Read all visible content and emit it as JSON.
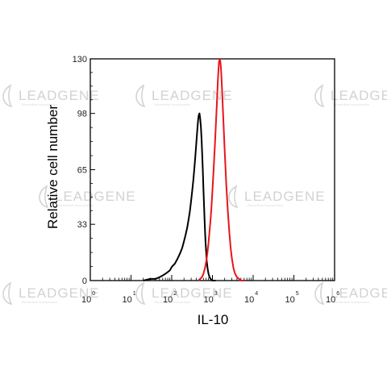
{
  "chart_data": {
    "type": "line",
    "xlabel": "IL-10",
    "ylabel": "Relative cell number",
    "x_scale": "log",
    "xlim": [
      1,
      1000000
    ],
    "ylim": [
      0,
      130
    ],
    "x_ticks": [
      {
        "base": "10",
        "exp": "0",
        "value": 1
      },
      {
        "base": "10",
        "exp": "1",
        "value": 10
      },
      {
        "base": "10",
        "exp": "2",
        "value": 100
      },
      {
        "base": "10",
        "exp": "3",
        "value": 1000
      },
      {
        "base": "10",
        "exp": "4",
        "value": 10000
      },
      {
        "base": "10",
        "exp": "5",
        "value": 100000
      },
      {
        "base": "10",
        "exp": "6",
        "value": 1000000
      }
    ],
    "y_ticks": [
      "0",
      "33",
      "65",
      "98",
      "130"
    ],
    "y_tick_values": [
      0,
      33,
      65,
      98,
      130
    ],
    "grid": false,
    "series": [
      {
        "color": "#000000",
        "x": [
          20,
          30,
          40,
          50,
          60,
          70,
          80,
          90,
          100,
          120,
          140,
          160,
          180,
          200,
          220,
          240,
          260,
          280,
          300,
          320,
          340,
          360,
          380,
          400,
          420,
          440,
          460,
          480,
          500,
          520,
          540,
          560,
          580,
          600,
          620,
          640,
          660,
          680,
          700,
          720,
          760,
          800,
          850,
          900,
          1000,
          1200
        ],
        "y": [
          0,
          1,
          1,
          2,
          3,
          4,
          5,
          6,
          8,
          10,
          13,
          16,
          19,
          23,
          27,
          31,
          36,
          41,
          47,
          53,
          59,
          66,
          73,
          80,
          87,
          93,
          97,
          98,
          95,
          90,
          83,
          74,
          64,
          54,
          45,
          36,
          28,
          22,
          17,
          12,
          7,
          4,
          2,
          1,
          0,
          0
        ]
      },
      {
        "color": "#e8151b",
        "x": [
          450,
          500,
          550,
          600,
          650,
          700,
          750,
          800,
          850,
          900,
          950,
          1000,
          1050,
          1100,
          1150,
          1200,
          1250,
          1300,
          1350,
          1400,
          1450,
          1500,
          1550,
          1600,
          1650,
          1700,
          1750,
          1800,
          1900,
          2000,
          2100,
          2200,
          2400,
          2600,
          2800,
          3000,
          3300,
          3600,
          4000,
          4500,
          5000,
          6000
        ],
        "y": [
          0,
          1,
          2,
          4,
          7,
          11,
          16,
          22,
          29,
          36,
          44,
          53,
          62,
          71,
          80,
          89,
          98,
          107,
          116,
          123,
          128,
          130,
          129,
          126,
          121,
          115,
          108,
          101,
          88,
          76,
          65,
          55,
          40,
          28,
          19,
          13,
          7,
          4,
          2,
          1,
          0,
          0
        ]
      }
    ]
  },
  "watermark": {
    "brand": "LEADGENE",
    "tagline": "Biomedical Incorporation"
  }
}
